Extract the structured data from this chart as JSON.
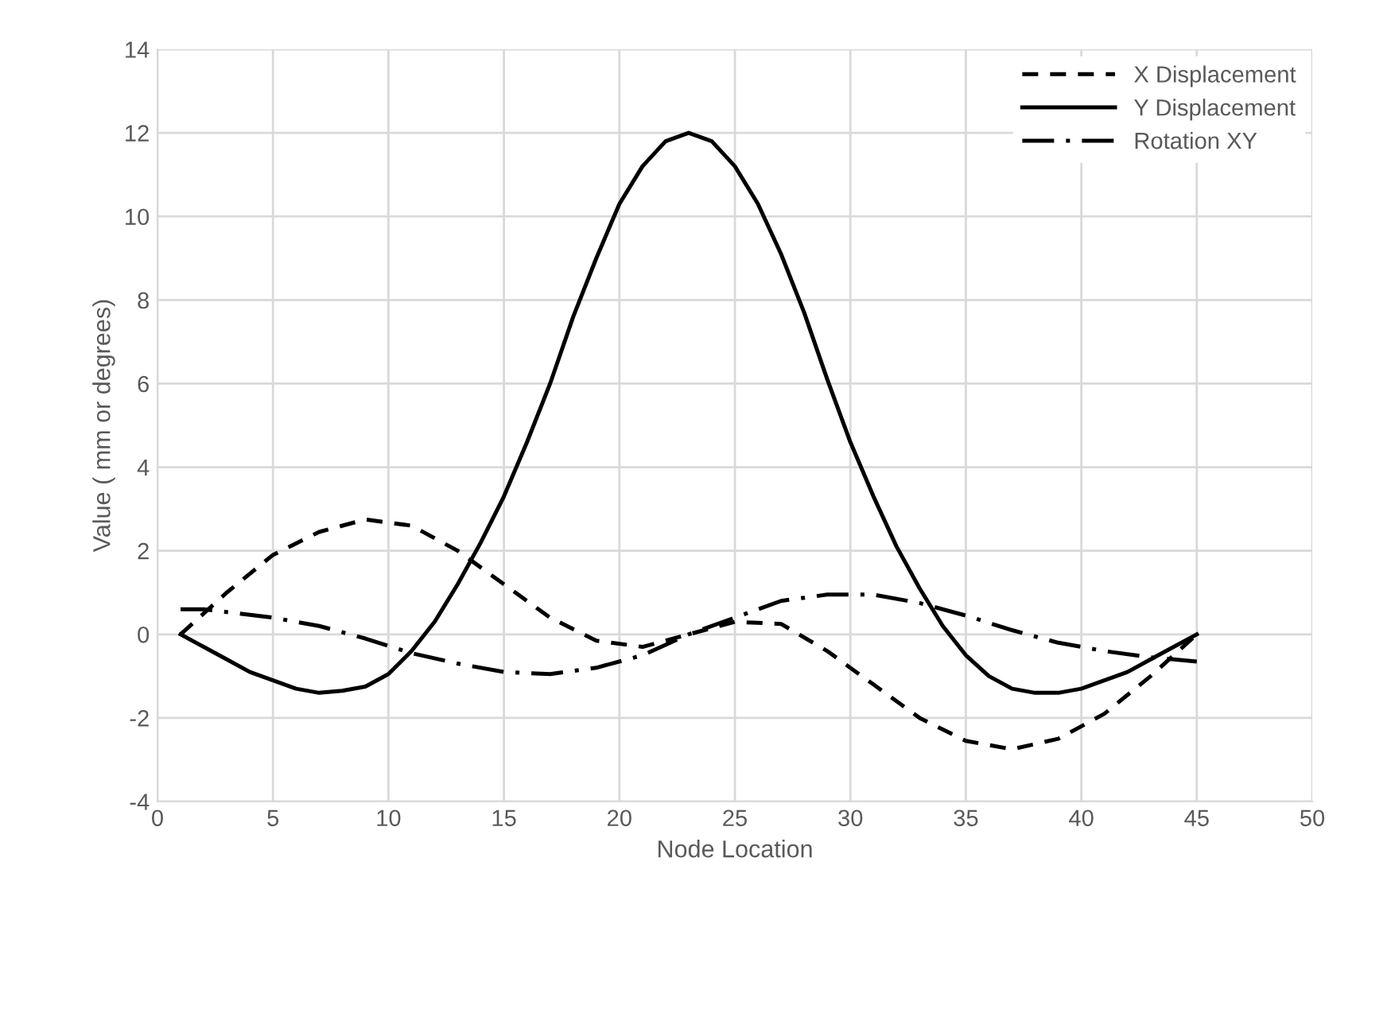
{
  "chart_data": {
    "type": "line",
    "xlabel": "Node Location",
    "ylabel": "Value ( mm or degrees)",
    "xlim": [
      0,
      50
    ],
    "xticks": [
      0,
      5,
      10,
      15,
      20,
      25,
      30,
      35,
      40,
      45,
      50
    ],
    "ylim": [
      -4,
      14
    ],
    "yticks": [
      -4,
      -2,
      0,
      2,
      4,
      6,
      8,
      10,
      12,
      14
    ],
    "grid": true,
    "legend": "top right",
    "marker": "none",
    "series": [
      {
        "name": "X Displacement",
        "color": "#000000",
        "line_style": "dashed",
        "x": [
          1,
          3,
          5,
          7,
          9,
          11,
          13,
          15,
          17,
          19,
          21,
          23,
          25,
          27,
          29,
          31,
          33,
          35,
          37,
          39,
          41,
          43,
          45
        ],
        "values": [
          0,
          1.0,
          1.9,
          2.45,
          2.75,
          2.6,
          2.0,
          1.2,
          0.4,
          -0.15,
          -0.3,
          0,
          0.3,
          0.25,
          -0.4,
          -1.2,
          -2.0,
          -2.55,
          -2.75,
          -2.5,
          -1.9,
          -1.0,
          0
        ]
      },
      {
        "name": "Y Displacement",
        "color": "#000000",
        "line_style": "solid",
        "x": [
          1,
          2,
          3,
          4,
          5,
          6,
          7,
          8,
          9,
          10,
          11,
          12,
          13,
          14,
          15,
          16,
          17,
          18,
          19,
          20,
          21,
          22,
          23,
          24,
          25,
          26,
          27,
          28,
          29,
          30,
          31,
          32,
          33,
          34,
          35,
          36,
          37,
          38,
          39,
          40,
          41,
          42,
          43,
          44,
          45
        ],
        "values": [
          0,
          -0.3,
          -0.6,
          -0.9,
          -1.1,
          -1.3,
          -1.4,
          -1.35,
          -1.25,
          -0.95,
          -0.4,
          0.3,
          1.2,
          2.2,
          3.3,
          4.6,
          6.0,
          7.6,
          9.0,
          10.3,
          11.2,
          11.8,
          12.0,
          11.8,
          11.2,
          10.3,
          9.1,
          7.7,
          6.1,
          4.6,
          3.3,
          2.1,
          1.1,
          0.2,
          -0.5,
          -1.0,
          -1.3,
          -1.4,
          -1.4,
          -1.3,
          -1.1,
          -0.9,
          -0.6,
          -0.3,
          0
        ]
      },
      {
        "name": "Rotation XY",
        "color": "#000000",
        "line_style": "dashdot",
        "x": [
          1,
          2,
          5,
          7,
          9,
          11,
          13,
          15,
          17,
          19,
          21,
          23,
          25,
          27,
          29,
          31,
          33,
          35,
          37,
          39,
          41,
          43,
          45
        ],
        "values": [
          0.6,
          0.6,
          0.4,
          0.2,
          -0.1,
          -0.45,
          -0.7,
          -0.9,
          -0.95,
          -0.8,
          -0.5,
          0,
          0.4,
          0.8,
          0.95,
          0.95,
          0.75,
          0.45,
          0.1,
          -0.2,
          -0.4,
          -0.55,
          -0.65
        ]
      }
    ]
  }
}
